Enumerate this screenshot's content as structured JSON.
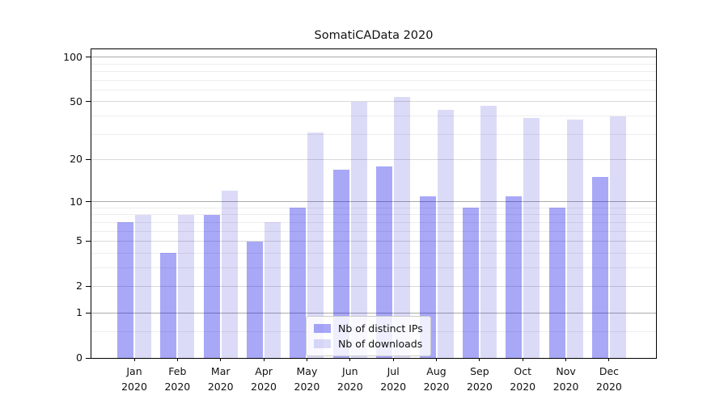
{
  "chart_data": {
    "type": "bar",
    "title": "SomatiCAData 2020",
    "categories": [
      "Jan",
      "Feb",
      "Mar",
      "Apr",
      "May",
      "Jun",
      "Jul",
      "Aug",
      "Sep",
      "Oct",
      "Nov",
      "Dec"
    ],
    "category_year": "2020",
    "series": [
      {
        "key": "distinct-ips",
        "name": "Nb of distinct IPs",
        "color": "rgba(2,2,231,0.345)",
        "values": [
          7,
          4,
          8,
          5,
          9,
          17,
          18,
          11,
          9,
          11,
          9,
          15
        ]
      },
      {
        "key": "downloads",
        "name": "Nb of downloads",
        "color": "rgba(2,2,204,0.14)",
        "values": [
          8,
          8,
          12,
          7,
          31,
          50,
          54,
          44,
          47,
          39,
          38,
          40
        ]
      }
    ],
    "yscale": "log1p",
    "ylim": [
      0,
      113
    ],
    "y_major_ticks": [
      0,
      1,
      2,
      5,
      10,
      20,
      50,
      100
    ],
    "y_minor_gridlines": [
      0.5,
      3,
      4,
      6,
      7,
      8,
      9,
      30,
      40,
      60,
      70,
      80,
      90
    ],
    "grid": "on",
    "legend_position": "bottom-center",
    "colors": {
      "grid_strong": "#ababab",
      "grid_medium": "#d9d9d9",
      "grid_minor": "#ededed",
      "axis": "#000000",
      "text": "#111111"
    }
  }
}
